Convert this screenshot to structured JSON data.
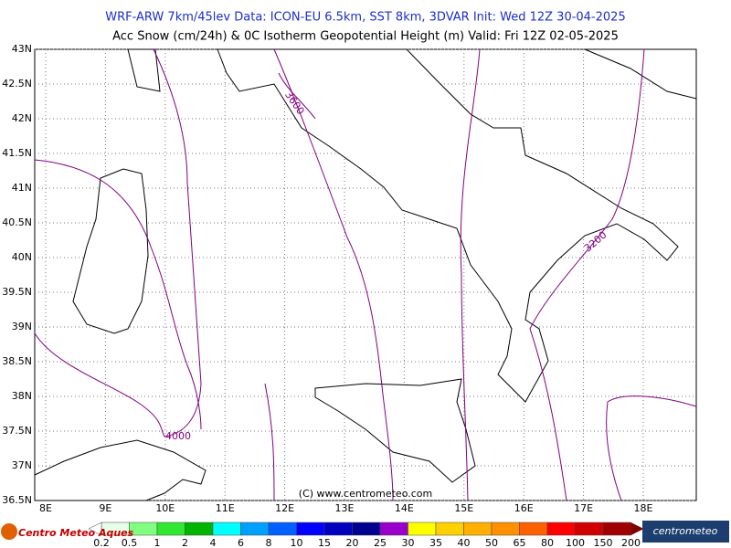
{
  "header": {
    "line1": "WRF-ARW 7km/45lev  Data: ICON-EU 6.5km, SST 8km, 3DVAR  Init: Wed 12Z 30-04-2025",
    "line2": "Acc Snow (cm/24h) & 0C Isotherm Geopotential Height (m)  Valid: Fri 12Z 02-05-2025"
  },
  "axes": {
    "lat_labels": [
      "43N",
      "42.5N",
      "42N",
      "41.5N",
      "41N",
      "40.5N",
      "40N",
      "39.5N",
      "39N",
      "38.5N",
      "38N",
      "37.5N",
      "37N",
      "36.5N"
    ],
    "lon_labels": [
      "8E",
      "9E",
      "10E",
      "11E",
      "12E",
      "13E",
      "14E",
      "15E",
      "16E",
      "17E",
      "18E"
    ]
  },
  "contour_labels": [
    "3600",
    "4000",
    "3200"
  ],
  "copyright": "(C) www.centrometeo.com",
  "colorbar": {
    "labels": [
      "0.2",
      "0.5",
      "1",
      "2",
      "4",
      "6",
      "8",
      "10",
      "15",
      "20",
      "25",
      "30",
      "35",
      "40",
      "50",
      "65",
      "80",
      "100",
      "150",
      "200"
    ],
    "colors": [
      "#e8ffe8",
      "#80ff80",
      "#30e830",
      "#00b400",
      "#00ffff",
      "#00a0ff",
      "#0060ff",
      "#0000ff",
      "#0000c0",
      "#000090",
      "#9900cc",
      "#ffff00",
      "#ffd000",
      "#ffb000",
      "#ff9000",
      "#ff6000",
      "#ff0000",
      "#d00000",
      "#a00000"
    ]
  },
  "logos": {
    "left": "Centro Meteo Aques",
    "right": "centrometeo"
  }
}
